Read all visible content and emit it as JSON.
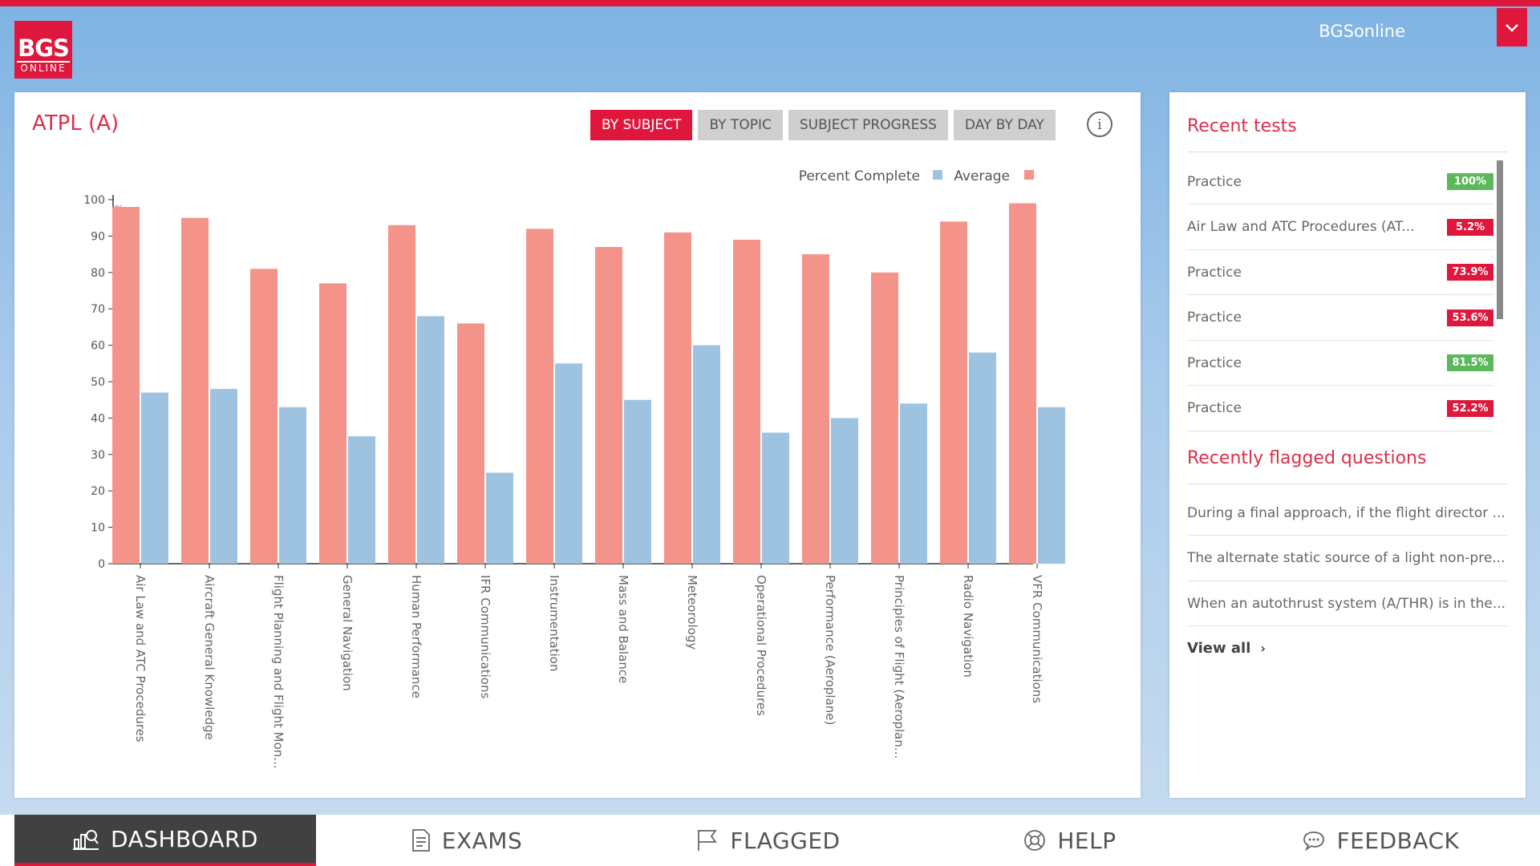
{
  "brand": {
    "logo_line1": "BGS",
    "logo_line2": "ONLINE",
    "accent_color": "#e0173c"
  },
  "user": {
    "name": "BGSonline",
    "toggle_icon": "chevron-down-icon"
  },
  "main": {
    "title": "ATPL (A)",
    "tabs": [
      {
        "label": "BY SUBJECT",
        "active": true
      },
      {
        "label": "BY TOPIC",
        "active": false
      },
      {
        "label": "SUBJECT PROGRESS",
        "active": false
      },
      {
        "label": "DAY BY DAY",
        "active": false
      }
    ],
    "info_icon": "info-icon"
  },
  "chart_data": {
    "type": "bar",
    "title": "",
    "ylabel": "%",
    "ylim": [
      0,
      100
    ],
    "yticks": [
      0,
      10,
      20,
      30,
      40,
      50,
      60,
      70,
      80,
      90,
      100
    ],
    "legend_placement": "top-right",
    "categories": [
      "Air Law and ATC Procedures",
      "Aircraft General Knowledge",
      "Flight Planning and Flight Mon...",
      "General Navigation",
      "Human Performance",
      "IFR Communications",
      "Instrumentation",
      "Mass and Balance",
      "Meteorology",
      "Operational Procedures",
      "Performance (Aeroplane)",
      "Principles of Flight (Aeroplan...",
      "Radio Navigation",
      "VFR Communications"
    ],
    "series": [
      {
        "name": "Average",
        "color": "#f4938a",
        "values": [
          98,
          95,
          81,
          77,
          93,
          66,
          92,
          87,
          91,
          89,
          85,
          80,
          94,
          99
        ]
      },
      {
        "name": "Percent Complete",
        "color": "#9ec3e0",
        "values": [
          47,
          48,
          43,
          35,
          68,
          25,
          55,
          45,
          60,
          36,
          40,
          44,
          58,
          43
        ]
      }
    ]
  },
  "recent_tests": {
    "heading": "Recent tests",
    "items": [
      {
        "name": "Practice",
        "score": "100%",
        "color": "#5cb85c"
      },
      {
        "name": "Air Law and ATC Procedures (AT...",
        "score": "5.2%",
        "color": "#e0173c"
      },
      {
        "name": "Practice",
        "score": "73.9%",
        "color": "#e0173c"
      },
      {
        "name": "Practice",
        "score": "53.6%",
        "color": "#e0173c"
      },
      {
        "name": "Practice",
        "score": "81.5%",
        "color": "#5cb85c"
      },
      {
        "name": "Practice",
        "score": "52.2%",
        "color": "#e0173c"
      }
    ]
  },
  "flagged": {
    "heading": "Recently flagged questions",
    "items": [
      "During a final approach, if the flight director ...",
      "The alternate static source of a light non-pre...",
      "When an autothrust system (A/THR) is in the..."
    ],
    "view_all": "View all"
  },
  "nav": {
    "items": [
      {
        "label": "DASHBOARD",
        "icon": "dashboard-icon",
        "active": true
      },
      {
        "label": "EXAMS",
        "icon": "document-icon",
        "active": false
      },
      {
        "label": "FLAGGED",
        "icon": "flag-icon",
        "active": false
      },
      {
        "label": "HELP",
        "icon": "lifebuoy-icon",
        "active": false
      },
      {
        "label": "FEEDBACK",
        "icon": "chat-bubble-icon",
        "active": false
      }
    ]
  }
}
